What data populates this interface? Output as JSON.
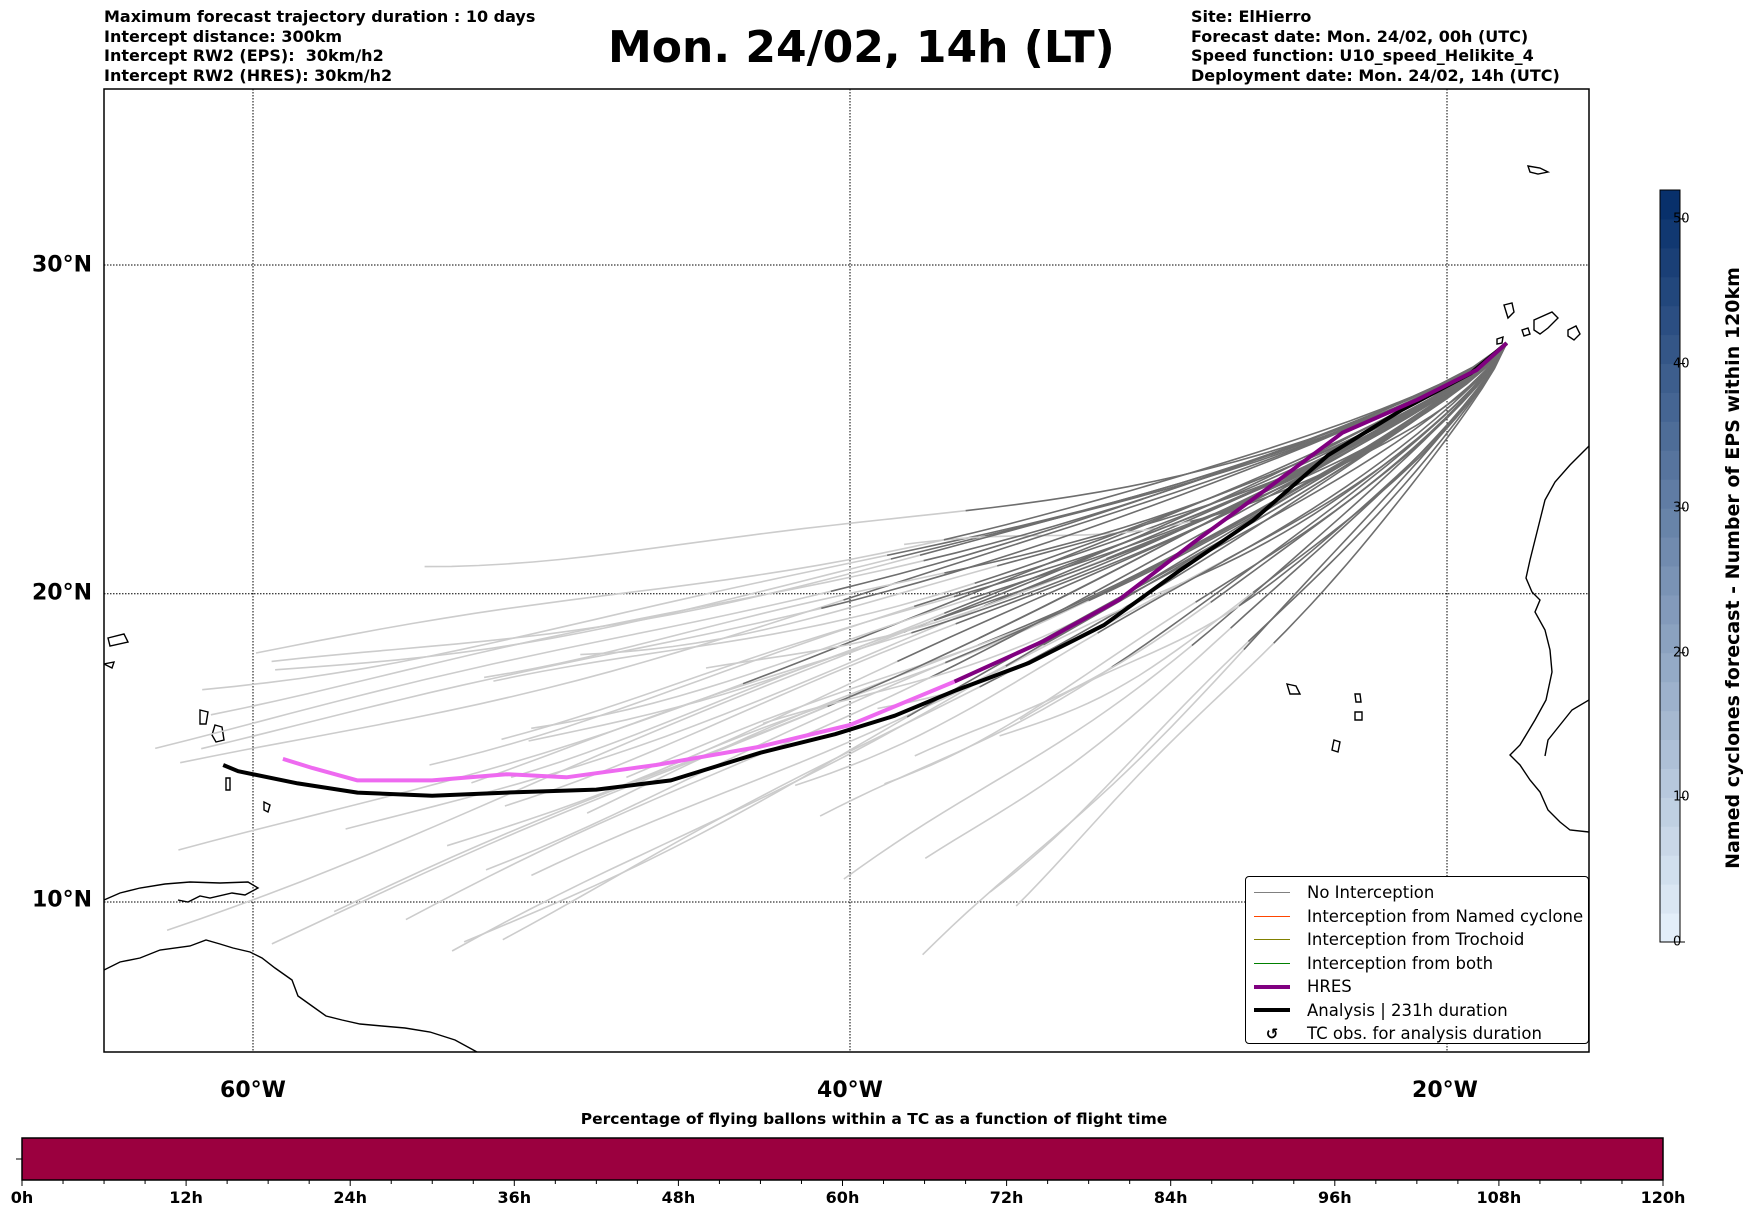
{
  "header": {
    "left_lines": [
      "Maximum forecast trajectory duration : 10 days",
      "Intercept distance: 300km",
      "Intercept RW2 (EPS):  30km/h2",
      "Intercept RW2 (HRES): 30km/h2"
    ],
    "title": "Mon. 24/02, 14h (LT)",
    "right_lines": [
      "Site: ElHierro",
      "Forecast date: Mon. 24/02, 00h (UTC)",
      "Speed function: U10_speed_Helikite_4",
      "Deployment date: Mon. 24/02, 14h (UTC)"
    ]
  },
  "map": {
    "lon_range": [
      -65,
      -15
    ],
    "lat_range": [
      5,
      35
    ],
    "lat_labels": [
      {
        "lat": 30,
        "label": "30°N"
      },
      {
        "lat": 20,
        "label": "20°N"
      },
      {
        "lat": 10,
        "label": "10°N"
      }
    ],
    "lon_labels": [
      {
        "lon": -60,
        "label": "60°W"
      },
      {
        "lon": -40,
        "label": "40°W"
      },
      {
        "lon": -20,
        "label": "20°W"
      }
    ],
    "launch_site": {
      "name": "ElHierro",
      "lon": -18.0,
      "lat": 27.7
    },
    "colors": {
      "no_interception_late": "#6e6e6e",
      "no_interception_early": "#cccccc",
      "hres": "#800080",
      "hres_early": "#ee6af0",
      "analysis": "#000000",
      "coast": "#000000"
    },
    "hres_track": [
      [
        -18.0,
        27.7
      ],
      [
        -19.0,
        26.9
      ],
      [
        -21.0,
        26.0
      ],
      [
        -23.5,
        25.0
      ],
      [
        -26.0,
        23.3
      ],
      [
        -28.5,
        21.6
      ],
      [
        -31.0,
        19.8
      ],
      [
        -33.5,
        18.5
      ],
      [
        -36.5,
        17.2
      ],
      [
        -38.0,
        16.6
      ],
      [
        -40.0,
        15.8
      ],
      [
        -43.0,
        15.1
      ],
      [
        -46.5,
        14.5
      ],
      [
        -49.5,
        14.1
      ],
      [
        -51.5,
        14.2
      ],
      [
        -54.0,
        14.0
      ],
      [
        -56.5,
        14.0
      ],
      [
        -58.0,
        14.4
      ],
      [
        -59.0,
        14.7
      ]
    ],
    "hres_late_until_index": 8,
    "analysis_track": [
      [
        -18.0,
        27.7
      ],
      [
        -19.2,
        26.8
      ],
      [
        -21.5,
        25.7
      ],
      [
        -24.0,
        24.3
      ],
      [
        -26.5,
        22.3
      ],
      [
        -29.0,
        20.7
      ],
      [
        -31.5,
        19.0
      ],
      [
        -34.0,
        17.8
      ],
      [
        -36.5,
        16.9
      ],
      [
        -38.5,
        16.1
      ],
      [
        -40.5,
        15.5
      ],
      [
        -43.0,
        14.9
      ],
      [
        -46.0,
        14.0
      ],
      [
        -48.5,
        13.7
      ],
      [
        -51.5,
        13.6
      ],
      [
        -54.0,
        13.5
      ],
      [
        -56.5,
        13.6
      ],
      [
        -58.5,
        13.9
      ],
      [
        -60.5,
        14.3
      ],
      [
        -61.0,
        14.5
      ]
    ],
    "ensemble_count": 50
  },
  "legend": [
    {
      "label": "No Interception",
      "color": "#808080",
      "style": "thin"
    },
    {
      "label": "Interception from Named cyclone",
      "color": "#ff4500",
      "style": "thin"
    },
    {
      "label": "Interception from Trochoid",
      "color": "#808000",
      "style": "thin"
    },
    {
      "label": "Interception from both",
      "color": "#008000",
      "style": "thin"
    },
    {
      "label": "HRES",
      "color": "#800080",
      "style": "thick"
    },
    {
      "label": "Analysis | 231h duration",
      "color": "#000000",
      "style": "thick"
    },
    {
      "label": "TC obs. for analysis duration",
      "color": "#000000",
      "style": "marker",
      "marker": "↺"
    }
  ],
  "colorbar": {
    "label": "Named cyclones forecast - Number of EPS within 120km",
    "min": 0,
    "max": 52,
    "ticks": [
      0,
      10,
      20,
      30,
      40,
      50
    ],
    "color_low": "#e3eef9",
    "color_high": "#08306b"
  },
  "flight_time_bar": {
    "title": "Percentage of flying ballons within a TC as a function of flight time",
    "ticks": [
      "0h",
      "12h",
      "24h",
      "36h",
      "48h",
      "60h",
      "72h",
      "84h",
      "96h",
      "108h",
      "120h"
    ],
    "max_hours": 120,
    "fill_color": "#9b003f",
    "fill_fraction": 1.0
  }
}
